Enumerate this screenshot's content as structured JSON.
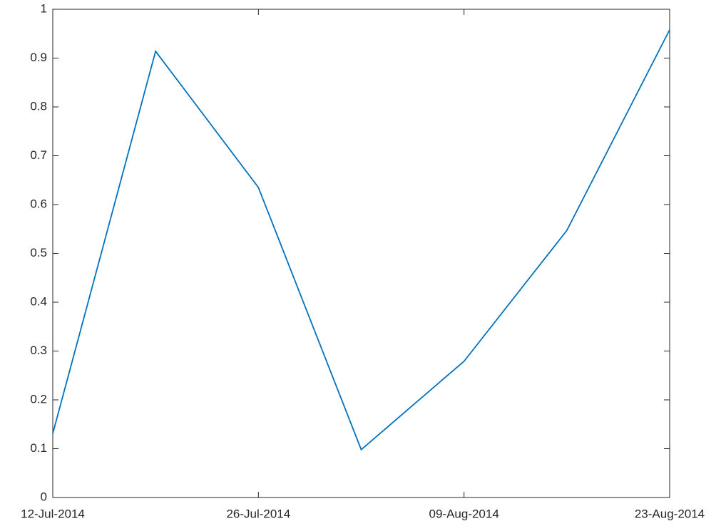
{
  "chart_data": {
    "type": "line",
    "x": [
      "2014-07-12",
      "2014-07-19",
      "2014-07-26",
      "2014-08-02",
      "2014-08-09",
      "2014-08-16",
      "2014-08-23"
    ],
    "series": [
      {
        "color": "#0072bd",
        "values": [
          0.131,
          0.914,
          0.635,
          0.098,
          0.279,
          0.547,
          0.958
        ]
      }
    ],
    "xlim": [
      "2014-07-12",
      "2014-08-23"
    ],
    "xticks": [
      {
        "value": "2014-07-12",
        "label": "12-Jul-2014"
      },
      {
        "value": "2014-07-26",
        "label": "26-Jul-2014"
      },
      {
        "value": "2014-08-09",
        "label": "09-Aug-2014"
      },
      {
        "value": "2014-08-23",
        "label": "23-Aug-2014"
      }
    ],
    "ylim": [
      0,
      1
    ],
    "yticks": [
      0,
      0.1,
      0.2,
      0.3,
      0.4,
      0.5,
      0.6,
      0.7,
      0.8,
      0.9,
      1
    ],
    "grid": false
  }
}
